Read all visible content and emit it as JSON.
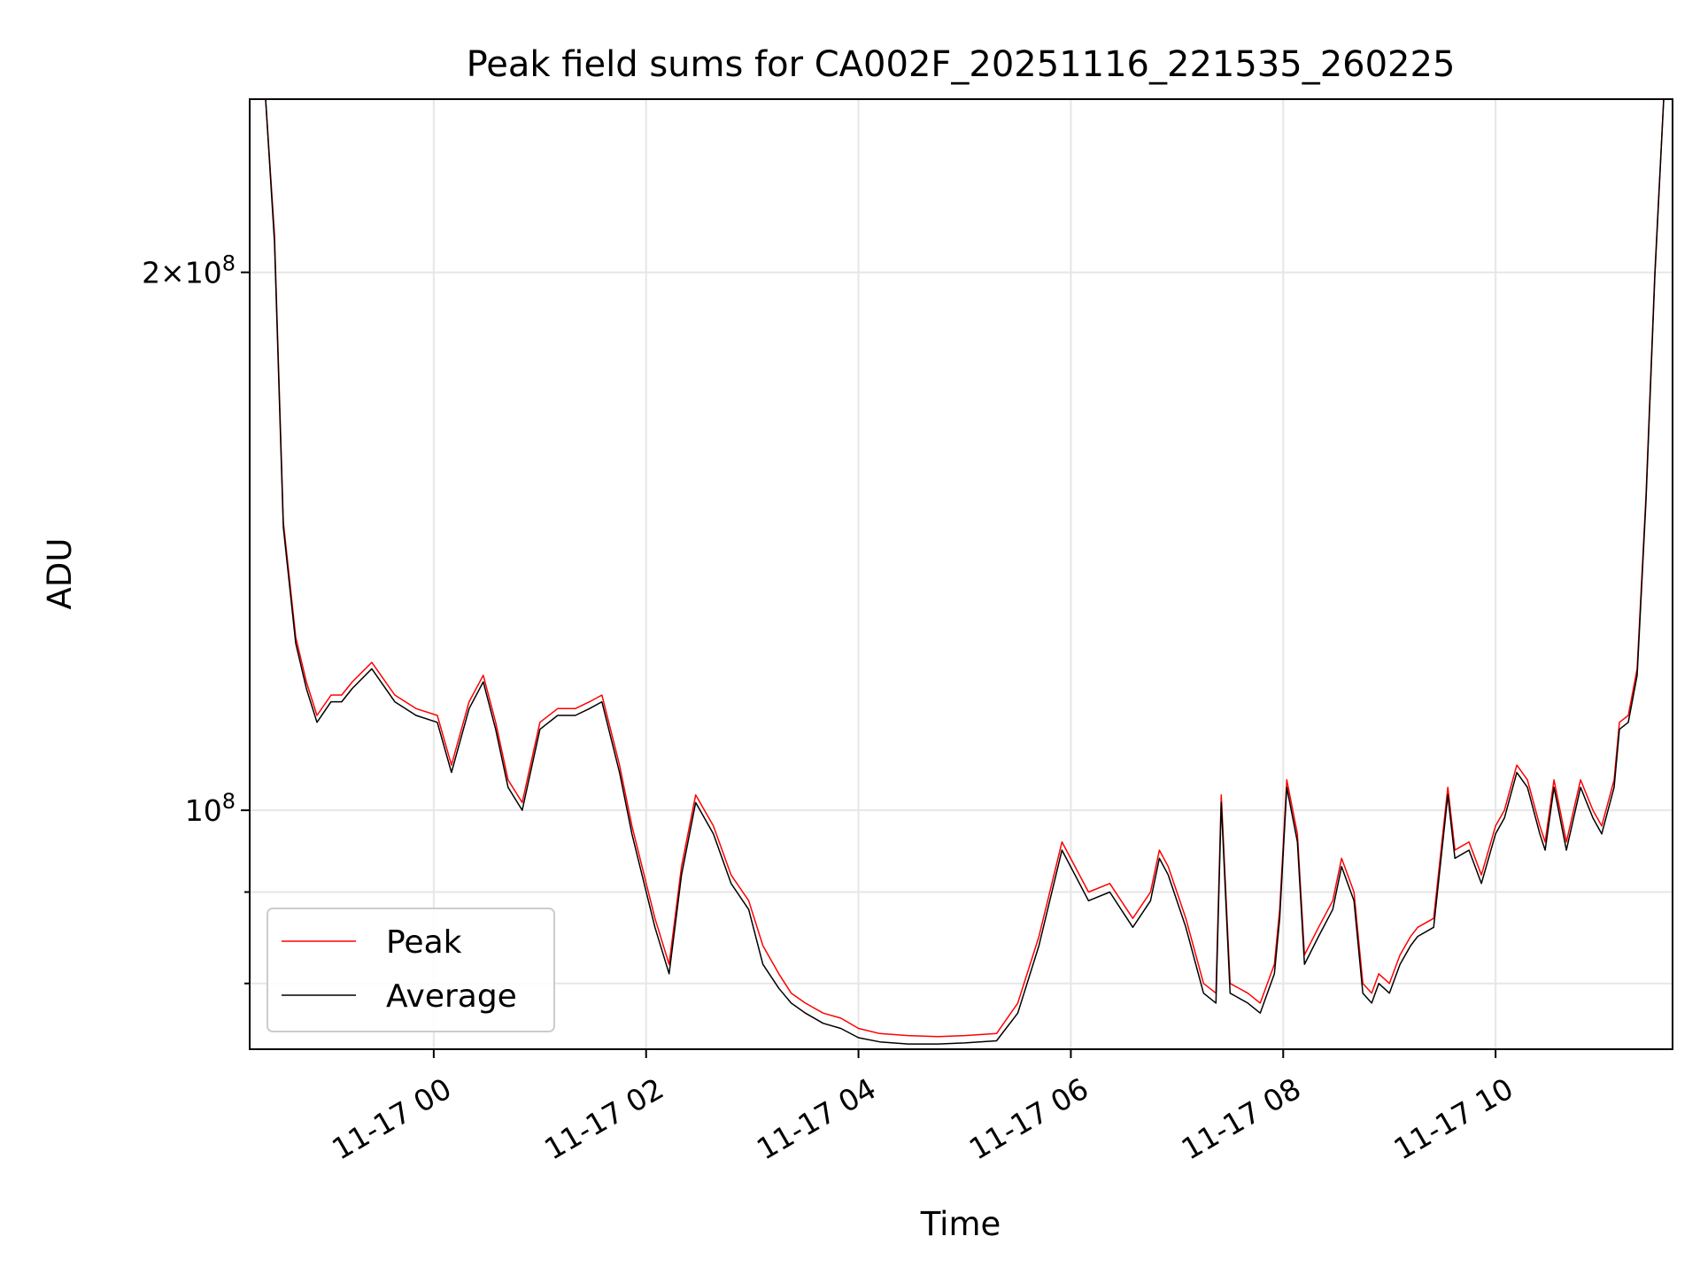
{
  "chart_data": {
    "type": "line",
    "title": "Peak field sums for CA002F_20251116_221535_260225",
    "xlabel": "Time",
    "ylabel": "ADU",
    "x_unit": "hours",
    "xlim": [
      "2025-11-16 22:16",
      "2025-11-17 11:40"
    ],
    "ylim": [
      73500000,
      250000000
    ],
    "y_scale": "log",
    "grid": true,
    "legend_position": "bottom-left",
    "x_ticks": [
      {
        "value": "2025-11-17 00:00",
        "label": "11-17 00"
      },
      {
        "value": "2025-11-17 02:00",
        "label": "11-17 02"
      },
      {
        "value": "2025-11-17 04:00",
        "label": "11-17 04"
      },
      {
        "value": "2025-11-17 06:00",
        "label": "11-17 06"
      },
      {
        "value": "2025-11-17 08:00",
        "label": "11-17 08"
      },
      {
        "value": "2025-11-17 10:00",
        "label": "11-17 10"
      }
    ],
    "y_ticks_major": [
      {
        "value": 100000000,
        "base": "10",
        "exp": "8",
        "mult": ""
      },
      {
        "value": 200000000,
        "base": "10",
        "exp": "8",
        "mult": "2×"
      }
    ],
    "y_ticks_minor": [
      80000000,
      90000000
    ],
    "series": [
      {
        "name": "Peak",
        "color": "#ff0000",
        "line_width": 1.5
      },
      {
        "name": "Average",
        "color": "#000000",
        "line_width": 1.5
      }
    ],
    "x": [
      "2025-11-16 22:16",
      "2025-11-16 22:25",
      "2025-11-16 22:30",
      "2025-11-16 22:35",
      "2025-11-16 22:42",
      "2025-11-16 22:48",
      "2025-11-16 22:54",
      "2025-11-16 23:02",
      "2025-11-16 23:08",
      "2025-11-16 23:14",
      "2025-11-16 23:25",
      "2025-11-16 23:38",
      "2025-11-16 23:50",
      "2025-11-17 00:02",
      "2025-11-17 00:10",
      "2025-11-17 00:20",
      "2025-11-17 00:28",
      "2025-11-17 00:35",
      "2025-11-17 00:42",
      "2025-11-17 00:50",
      "2025-11-17 01:00",
      "2025-11-17 01:10",
      "2025-11-17 01:20",
      "2025-11-17 01:28",
      "2025-11-17 01:35",
      "2025-11-17 01:45",
      "2025-11-17 01:52",
      "2025-11-17 02:05",
      "2025-11-17 02:13",
      "2025-11-17 02:20",
      "2025-11-17 02:28",
      "2025-11-17 02:38",
      "2025-11-17 02:48",
      "2025-11-17 02:58",
      "2025-11-17 03:06",
      "2025-11-17 03:15",
      "2025-11-17 03:22",
      "2025-11-17 03:30",
      "2025-11-17 03:40",
      "2025-11-17 03:50",
      "2025-11-17 04:00",
      "2025-11-17 04:12",
      "2025-11-17 04:28",
      "2025-11-17 04:45",
      "2025-11-17 05:00",
      "2025-11-17 05:18",
      "2025-11-17 05:30",
      "2025-11-17 05:42",
      "2025-11-17 05:55",
      "2025-11-17 06:10",
      "2025-11-17 06:22",
      "2025-11-17 06:35",
      "2025-11-17 06:45",
      "2025-11-17 06:50",
      "2025-11-17 06:55",
      "2025-11-17 07:05",
      "2025-11-17 07:15",
      "2025-11-17 07:22",
      "2025-11-17 07:25",
      "2025-11-17 07:30",
      "2025-11-17 07:40",
      "2025-11-17 07:47",
      "2025-11-17 07:55",
      "2025-11-17 07:58",
      "2025-11-17 08:02",
      "2025-11-17 08:08",
      "2025-11-17 08:12",
      "2025-11-17 08:20",
      "2025-11-17 08:28",
      "2025-11-17 08:33",
      "2025-11-17 08:40",
      "2025-11-17 08:45",
      "2025-11-17 08:50",
      "2025-11-17 08:54",
      "2025-11-17 09:00",
      "2025-11-17 09:06",
      "2025-11-17 09:12",
      "2025-11-17 09:16",
      "2025-11-17 09:25",
      "2025-11-17 09:33",
      "2025-11-17 09:37",
      "2025-11-17 09:45",
      "2025-11-17 09:52",
      "2025-11-17 10:00",
      "2025-11-17 10:05",
      "2025-11-17 10:12",
      "2025-11-17 10:18",
      "2025-11-17 10:25",
      "2025-11-17 10:28",
      "2025-11-17 10:33",
      "2025-11-17 10:40",
      "2025-11-17 10:48",
      "2025-11-17 10:55",
      "2025-11-17 11:00",
      "2025-11-17 11:07",
      "2025-11-17 11:10",
      "2025-11-17 11:15",
      "2025-11-17 11:20",
      "2025-11-17 11:25",
      "2025-11-17 11:30",
      "2025-11-17 11:35",
      "2025-11-17 11:40"
    ],
    "peak": [
      250000000,
      250000000,
      210000000,
      145000000,
      125000000,
      118000000,
      113000000,
      116000000,
      116000000,
      118000000,
      121000000,
      116000000,
      114000000,
      113000000,
      106000000,
      115000000,
      119000000,
      112000000,
      104000000,
      101000000,
      112000000,
      114000000,
      114000000,
      115000000,
      116000000,
      106000000,
      98000000,
      87000000,
      82000000,
      93000000,
      102000000,
      98000000,
      92000000,
      89000000,
      84000000,
      81000000,
      79000000,
      78000000,
      77000000,
      76500000,
      75500000,
      75000000,
      74800000,
      74700000,
      74800000,
      75000000,
      78000000,
      85000000,
      96000000,
      90000000,
      91000000,
      87000000,
      90000000,
      95000000,
      93000000,
      87000000,
      80000000,
      79000000,
      102000000,
      80000000,
      79000000,
      78000000,
      82000000,
      88000000,
      104000000,
      97000000,
      83000000,
      86000000,
      89000000,
      94000000,
      90000000,
      80000000,
      79000000,
      81000000,
      80000000,
      83000000,
      85000000,
      86000000,
      87000000,
      103000000,
      95000000,
      96000000,
      92000000,
      98000000,
      100000000,
      106000000,
      104000000,
      98000000,
      96000000,
      104000000,
      96000000,
      104000000,
      100000000,
      98000000,
      104000000,
      112000000,
      113000000,
      120000000,
      150000000,
      200000000,
      250000000,
      250000000
    ],
    "average": [
      250000000,
      250000000,
      208000000,
      144000000,
      124000000,
      117000000,
      112000000,
      115000000,
      115000000,
      117000000,
      120000000,
      115000000,
      113000000,
      112000000,
      105000000,
      114000000,
      118000000,
      111000000,
      103000000,
      100000000,
      111000000,
      113000000,
      113000000,
      114000000,
      115000000,
      105000000,
      97000000,
      86000000,
      81000000,
      92000000,
      101000000,
      97000000,
      91000000,
      88000000,
      82000000,
      79500000,
      78000000,
      77000000,
      76000000,
      75500000,
      74600000,
      74200000,
      74000000,
      74000000,
      74100000,
      74300000,
      77000000,
      84000000,
      95000000,
      89000000,
      90000000,
      86000000,
      89000000,
      94000000,
      92000000,
      86000000,
      79000000,
      78000000,
      101000000,
      79000000,
      78000000,
      77000000,
      81000000,
      87000000,
      103000000,
      96000000,
      82000000,
      85000000,
      88000000,
      93000000,
      89000000,
      79000000,
      78000000,
      80000000,
      79000000,
      82000000,
      84000000,
      85000000,
      86000000,
      102000000,
      94000000,
      95000000,
      91000000,
      97000000,
      99000000,
      105000000,
      103000000,
      97000000,
      95000000,
      103000000,
      95000000,
      103000000,
      99000000,
      97000000,
      103000000,
      111000000,
      112000000,
      119000000,
      149000000,
      199000000,
      250000000,
      250000000
    ]
  }
}
